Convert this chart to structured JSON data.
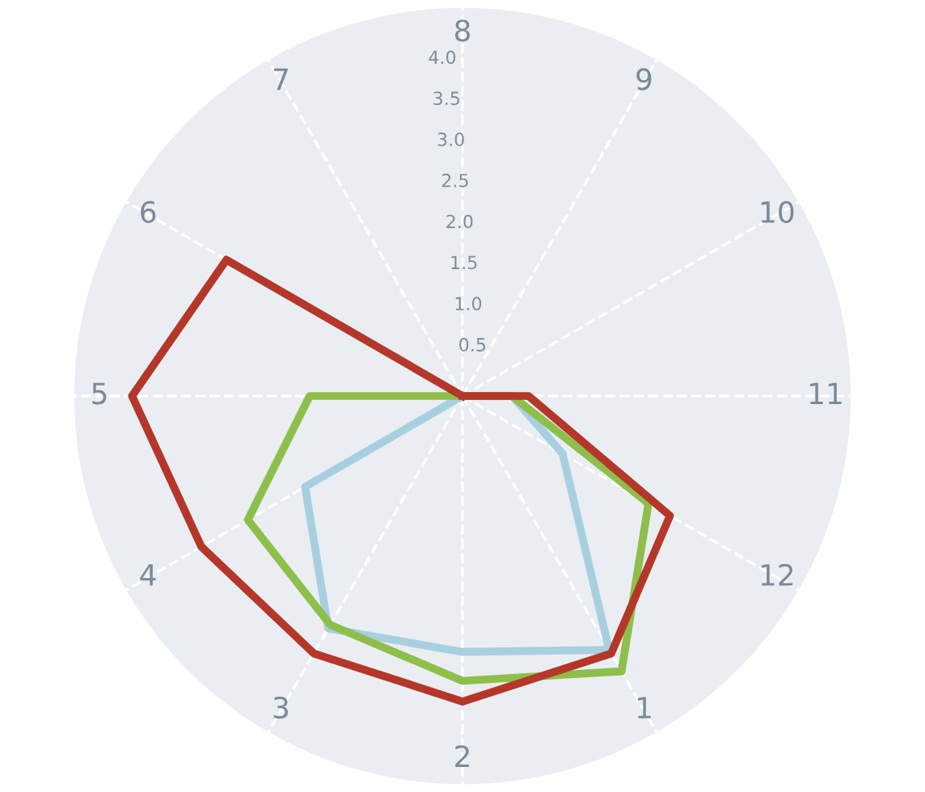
{
  "chart_data": {
    "type": "radar",
    "categories": [
      "8",
      "9",
      "10",
      "11",
      "12",
      "1",
      "2",
      "3",
      "4",
      "5",
      "6",
      "7"
    ],
    "series": [
      {
        "color": "#a8cfe0",
        "values": [
          0,
          0,
          0,
          0.6,
          1.4,
          3.55,
          3.1,
          3.25,
          2.2,
          0,
          0,
          0
        ]
      },
      {
        "color": "#8dbf4a",
        "values": [
          0,
          0,
          0,
          0.6,
          2.6,
          3.85,
          3.45,
          3.2,
          3.0,
          1.85,
          0,
          0
        ]
      },
      {
        "color": "#b5372a",
        "values": [
          0,
          0,
          0,
          0.8,
          2.9,
          3.6,
          3.7,
          3.6,
          3.65,
          4.0,
          3.3,
          0
        ]
      }
    ],
    "ylim": [
      0,
      4.7
    ],
    "yticks": [
      0.5,
      {
        "value": 1,
        "label": "1.0"
      },
      1.5,
      {
        "value": 2,
        "label": "2.0"
      },
      2.5,
      {
        "value": 3,
        "label": "3.0"
      },
      3.5,
      {
        "value": 4,
        "label": "4.0"
      }
    ],
    "grid": "x",
    "marker": "none",
    "line_style": "solid"
  }
}
